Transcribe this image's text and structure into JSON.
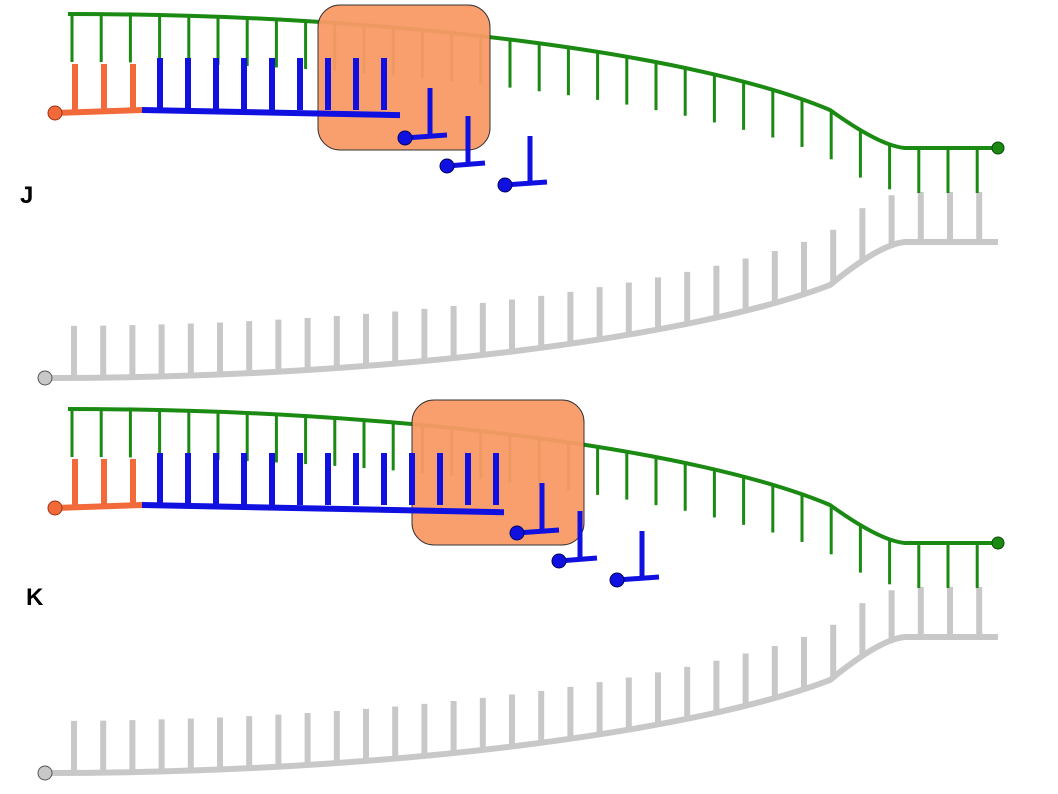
{
  "panels": [
    {
      "label": "J"
    },
    {
      "label": "K"
    }
  ]
}
